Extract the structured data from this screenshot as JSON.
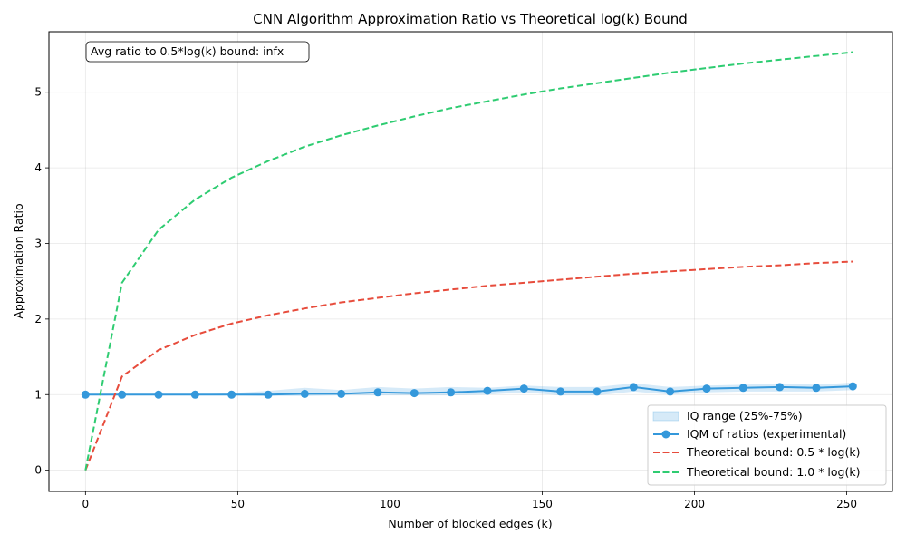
{
  "chart_data": {
    "type": "line",
    "title": "CNN Algorithm Approximation Ratio vs Theoretical log(k) Bound",
    "xlabel": "Number of blocked edges (k)",
    "ylabel": "Approximation Ratio",
    "xlim": [
      -12,
      265
    ],
    "ylim": [
      -0.28,
      5.8
    ],
    "x_ticks": [
      0,
      50,
      100,
      150,
      200,
      250
    ],
    "y_ticks": [
      0,
      1,
      2,
      3,
      4,
      5
    ],
    "grid": true,
    "legend_position": "lower-right",
    "annotation": "Avg ratio to 0.5*log(k) bound: infx",
    "annotation_position": "top-left",
    "x": [
      0,
      12,
      24,
      36,
      48,
      60,
      72,
      84,
      96,
      108,
      120,
      132,
      144,
      156,
      168,
      180,
      192,
      204,
      216,
      228,
      240,
      252
    ],
    "band": {
      "name": "IQ range (25%-75%)",
      "color": "#3498db",
      "lower": [
        1.0,
        1.0,
        1.0,
        1.0,
        0.99,
        0.98,
        0.98,
        0.99,
        0.99,
        0.99,
        0.99,
        1.0,
        1.03,
        0.99,
        0.99,
        1.04,
        1.0,
        1.03,
        1.04,
        1.04,
        1.04,
        1.06
      ],
      "upper": [
        1.0,
        1.0,
        1.0,
        1.0,
        1.02,
        1.05,
        1.09,
        1.06,
        1.1,
        1.08,
        1.1,
        1.09,
        1.12,
        1.1,
        1.1,
        1.15,
        1.1,
        1.12,
        1.13,
        1.15,
        1.13,
        1.16
      ]
    },
    "series": [
      {
        "name": "IQM of ratios (experimental)",
        "color": "#3498db",
        "style": "solid-markers",
        "values": [
          1.0,
          1.0,
          1.0,
          1.0,
          1.0,
          1.0,
          1.01,
          1.01,
          1.03,
          1.02,
          1.03,
          1.05,
          1.08,
          1.04,
          1.04,
          1.1,
          1.04,
          1.08,
          1.09,
          1.1,
          1.09,
          1.11
        ]
      },
      {
        "name": "Theoretical bound: 0.5 * log(k)",
        "color": "#e74c3c",
        "style": "dashed",
        "values": [
          0.0,
          1.24,
          1.59,
          1.79,
          1.94,
          2.05,
          2.14,
          2.22,
          2.28,
          2.34,
          2.39,
          2.44,
          2.48,
          2.52,
          2.56,
          2.6,
          2.63,
          2.66,
          2.69,
          2.71,
          2.74,
          2.76
        ]
      },
      {
        "name": "Theoretical bound: 1.0 * log(k)",
        "color": "#2ecc71",
        "style": "dashed",
        "values": [
          0.0,
          2.48,
          3.18,
          3.58,
          3.87,
          4.09,
          4.28,
          4.43,
          4.56,
          4.68,
          4.79,
          4.88,
          4.97,
          5.05,
          5.12,
          5.19,
          5.26,
          5.32,
          5.38,
          5.43,
          5.48,
          5.53
        ]
      }
    ]
  }
}
